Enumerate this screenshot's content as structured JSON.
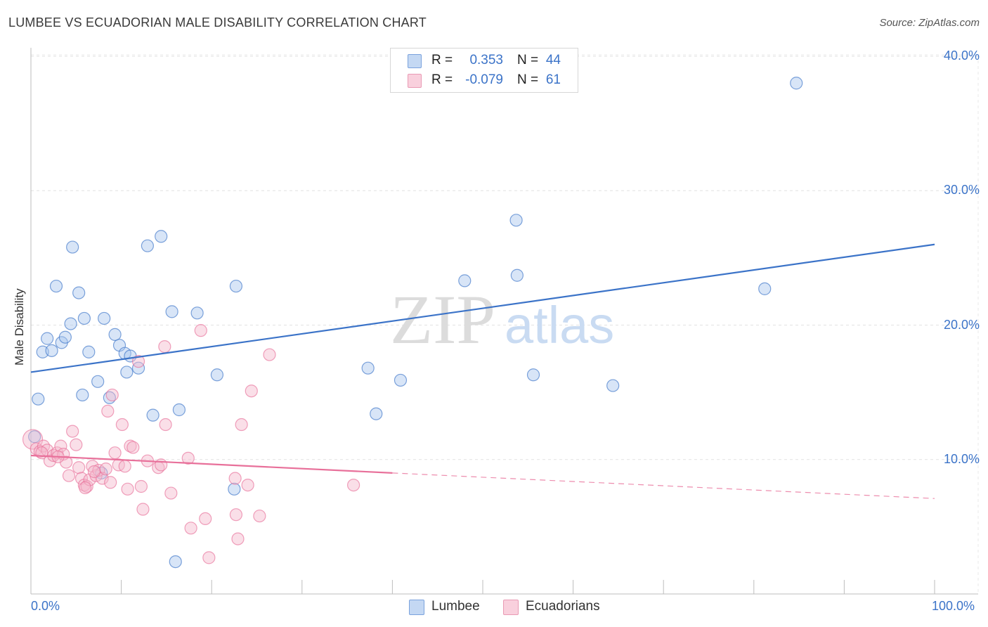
{
  "header": {
    "title": "LUMBEE VS ECUADORIAN MALE DISABILITY CORRELATION CHART",
    "source": "Source: ZipAtlas.com"
  },
  "watermark": {
    "zip": "ZIP",
    "atlas": "atlas"
  },
  "stats": [
    {
      "r_label": "R =",
      "r_value": "0.353",
      "n_label": "N =",
      "n_value": "44",
      "color": "#a9c6ee"
    },
    {
      "r_label": "R =",
      "r_value": "-0.079",
      "n_label": "N =",
      "n_value": "61",
      "color": "#f5b8cb"
    }
  ],
  "legend": [
    {
      "label": "Lumbee",
      "color": "#a9c6ee"
    },
    {
      "label": "Ecuadorians",
      "color": "#f5b8cb"
    }
  ],
  "chart_data": {
    "type": "scatter",
    "title": "LUMBEE VS ECUADORIAN MALE DISABILITY CORRELATION CHART",
    "xlabel": "",
    "ylabel": "Male Disability",
    "xlim": [
      0,
      100
    ],
    "ylim": [
      0,
      40
    ],
    "x_tick_labels": [
      "0.0%",
      "100.0%"
    ],
    "y_ticks": [
      10,
      20,
      30,
      40
    ],
    "y_tick_labels": [
      "10.0%",
      "20.0%",
      "30.0%",
      "40.0%"
    ],
    "grid": true,
    "legend_position": "bottom-center",
    "series": [
      {
        "name": "Lumbee",
        "color": "#3b73c8",
        "fill": "#a9c6ee",
        "trend": {
          "x": [
            0,
            100
          ],
          "y": [
            16.5,
            26.0
          ],
          "style": "solid"
        },
        "points": [
          [
            0.4,
            11.7
          ],
          [
            0.8,
            14.5
          ],
          [
            1.3,
            18.0
          ],
          [
            1.8,
            19.0
          ],
          [
            2.3,
            18.1
          ],
          [
            2.8,
            22.9
          ],
          [
            3.4,
            18.7
          ],
          [
            3.8,
            19.1
          ],
          [
            4.4,
            20.1
          ],
          [
            4.6,
            25.8
          ],
          [
            5.3,
            22.4
          ],
          [
            5.9,
            20.5
          ],
          [
            6.4,
            18.0
          ],
          [
            7.4,
            15.8
          ],
          [
            8.1,
            20.5
          ],
          [
            8.7,
            14.6
          ],
          [
            9.3,
            19.3
          ],
          [
            9.8,
            18.5
          ],
          [
            10.4,
            17.9
          ],
          [
            11.0,
            17.7
          ],
          [
            11.9,
            16.8
          ],
          [
            12.9,
            25.9
          ],
          [
            14.4,
            26.6
          ],
          [
            13.5,
            13.3
          ],
          [
            15.6,
            21.0
          ],
          [
            16.4,
            13.7
          ],
          [
            18.4,
            20.9
          ],
          [
            20.6,
            16.3
          ],
          [
            22.7,
            22.9
          ],
          [
            7.8,
            9.0
          ],
          [
            16.0,
            2.4
          ],
          [
            22.5,
            7.8
          ],
          [
            37.3,
            16.8
          ],
          [
            38.2,
            13.4
          ],
          [
            40.9,
            15.9
          ],
          [
            48.0,
            23.3
          ],
          [
            53.7,
            27.8
          ],
          [
            53.8,
            23.7
          ],
          [
            55.6,
            16.3
          ],
          [
            64.4,
            15.5
          ],
          [
            81.2,
            22.7
          ],
          [
            84.7,
            38.0
          ],
          [
            5.7,
            14.8
          ],
          [
            10.6,
            16.5
          ]
        ]
      },
      {
        "name": "Ecuadorians",
        "color": "#e8709a",
        "fill": "#f5b8cb",
        "trend": {
          "x": [
            0,
            40
          ],
          "y": [
            10.3,
            9.0
          ],
          "style": "solid",
          "extension": {
            "x": [
              40,
              100
            ],
            "y": [
              9.0,
              7.1
            ]
          }
        },
        "points": [
          [
            0.2,
            11.5
          ],
          [
            0.6,
            10.8
          ],
          [
            1.0,
            10.6
          ],
          [
            1.4,
            11.0
          ],
          [
            1.8,
            10.7
          ],
          [
            2.1,
            9.9
          ],
          [
            2.5,
            10.3
          ],
          [
            2.9,
            10.5
          ],
          [
            3.3,
            11.0
          ],
          [
            3.6,
            10.4
          ],
          [
            3.9,
            9.8
          ],
          [
            4.2,
            8.8
          ],
          [
            4.6,
            12.1
          ],
          [
            5.0,
            11.1
          ],
          [
            5.3,
            9.4
          ],
          [
            5.6,
            8.6
          ],
          [
            5.9,
            8.1
          ],
          [
            6.2,
            8.0
          ],
          [
            6.5,
            8.5
          ],
          [
            6.8,
            9.5
          ],
          [
            7.2,
            8.8
          ],
          [
            7.5,
            9.2
          ],
          [
            7.9,
            8.6
          ],
          [
            8.3,
            9.3
          ],
          [
            8.5,
            13.6
          ],
          [
            8.8,
            8.3
          ],
          [
            9.0,
            14.8
          ],
          [
            9.3,
            10.5
          ],
          [
            9.7,
            9.6
          ],
          [
            10.1,
            12.6
          ],
          [
            10.4,
            9.5
          ],
          [
            10.7,
            7.8
          ],
          [
            11.0,
            11.0
          ],
          [
            11.3,
            10.9
          ],
          [
            11.9,
            17.3
          ],
          [
            12.2,
            8.0
          ],
          [
            12.4,
            6.3
          ],
          [
            12.9,
            9.9
          ],
          [
            14.1,
            9.4
          ],
          [
            14.4,
            9.6
          ],
          [
            14.8,
            18.4
          ],
          [
            14.9,
            12.6
          ],
          [
            15.5,
            7.5
          ],
          [
            17.4,
            10.1
          ],
          [
            17.7,
            4.9
          ],
          [
            18.8,
            19.6
          ],
          [
            19.3,
            5.6
          ],
          [
            19.7,
            2.7
          ],
          [
            22.6,
            8.6
          ],
          [
            22.7,
            5.9
          ],
          [
            22.9,
            4.1
          ],
          [
            23.3,
            12.6
          ],
          [
            24.0,
            8.1
          ],
          [
            24.4,
            15.1
          ],
          [
            25.3,
            5.8
          ],
          [
            26.4,
            17.8
          ],
          [
            35.7,
            8.1
          ],
          [
            3.0,
            10.2
          ],
          [
            7.0,
            9.1
          ],
          [
            1.2,
            10.5
          ],
          [
            6.0,
            7.9
          ]
        ]
      }
    ]
  }
}
